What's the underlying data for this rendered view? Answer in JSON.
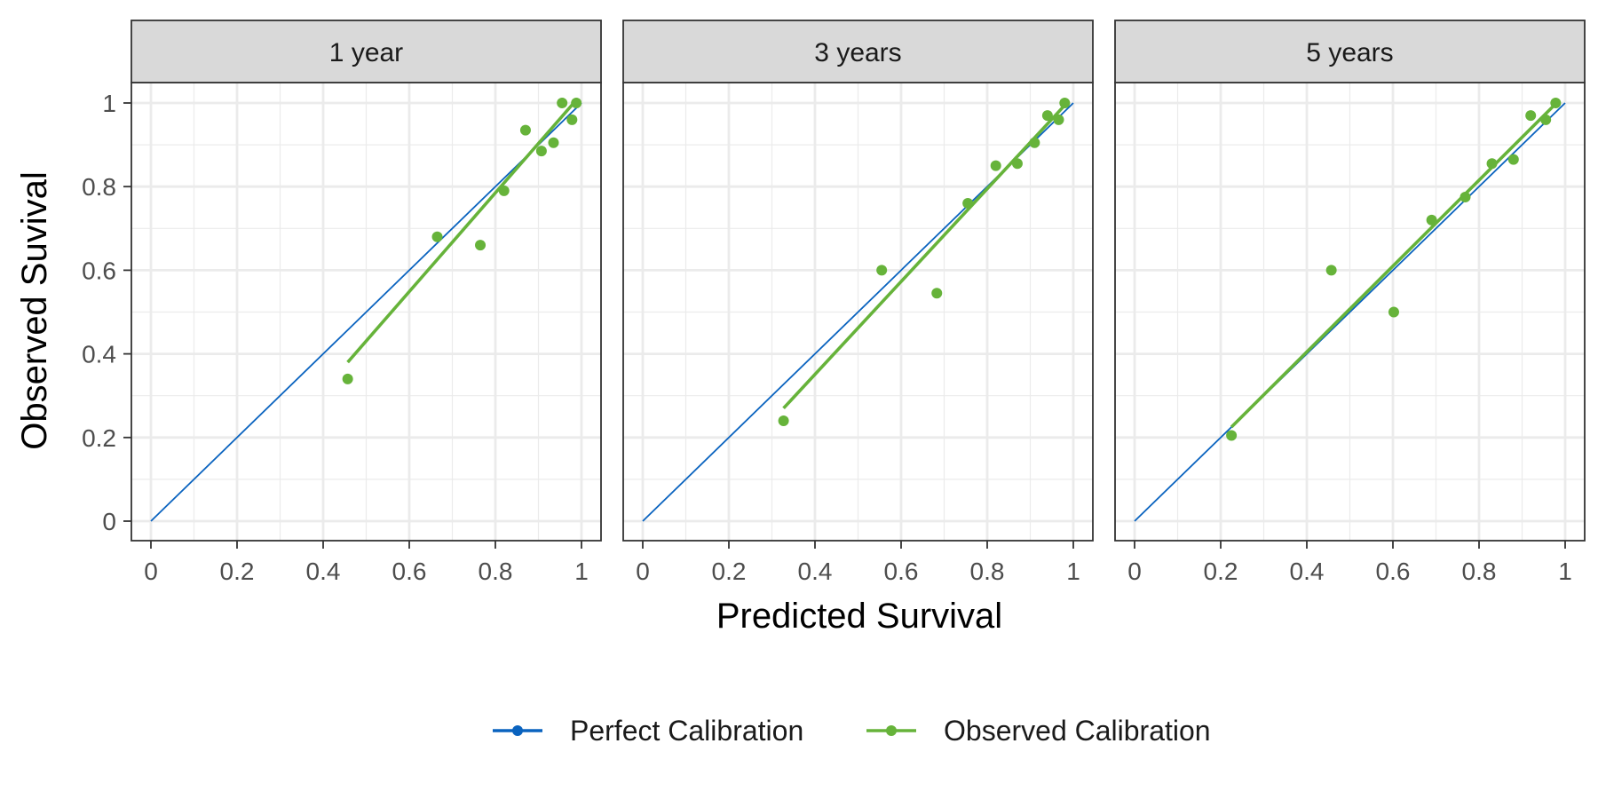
{
  "chart_data": {
    "type": "scatter",
    "xlabel": "Predicted Survival",
    "ylabel": "Observed Suvival",
    "xlim": [
      0,
      1
    ],
    "ylim": [
      0,
      1
    ],
    "x_ticks": [
      "0",
      "0.2",
      "0.4",
      "0.6",
      "0.8",
      "1"
    ],
    "y_ticks": [
      "0",
      "0.2",
      "0.4",
      "0.6",
      "0.8",
      "1"
    ],
    "grid": true,
    "legend_position": "bottom",
    "colors": {
      "perfect": "#0A63BF",
      "observed": "#66B33A",
      "grid": "#EBEBEB",
      "strip_bg": "#D9D9D9",
      "border": "#333333"
    },
    "legend": [
      {
        "key": "perfect",
        "label": "Perfect Calibration"
      },
      {
        "key": "observed",
        "label": "Observed Calibration"
      }
    ],
    "panels": [
      {
        "label": "1 year",
        "perfect_line": {
          "x": [
            0,
            1
          ],
          "y": [
            0,
            1
          ]
        },
        "observed_line": {
          "x": [
            0.457,
            0.982
          ],
          "y": [
            0.38,
            1.0
          ]
        },
        "points": [
          {
            "x": 0.457,
            "y": 0.34
          },
          {
            "x": 0.665,
            "y": 0.68
          },
          {
            "x": 0.765,
            "y": 0.66
          },
          {
            "x": 0.82,
            "y": 0.79
          },
          {
            "x": 0.87,
            "y": 0.935
          },
          {
            "x": 0.907,
            "y": 0.885
          },
          {
            "x": 0.935,
            "y": 0.905
          },
          {
            "x": 0.955,
            "y": 1.0
          },
          {
            "x": 0.978,
            "y": 0.96
          },
          {
            "x": 0.988,
            "y": 1.0
          }
        ]
      },
      {
        "label": "3 years",
        "perfect_line": {
          "x": [
            0,
            1
          ],
          "y": [
            0,
            1
          ]
        },
        "observed_line": {
          "x": [
            0.327,
            0.985
          ],
          "y": [
            0.27,
            1.0
          ]
        },
        "points": [
          {
            "x": 0.327,
            "y": 0.24
          },
          {
            "x": 0.555,
            "y": 0.6
          },
          {
            "x": 0.683,
            "y": 0.545
          },
          {
            "x": 0.755,
            "y": 0.76
          },
          {
            "x": 0.82,
            "y": 0.85
          },
          {
            "x": 0.87,
            "y": 0.855
          },
          {
            "x": 0.91,
            "y": 0.905
          },
          {
            "x": 0.94,
            "y": 0.97
          },
          {
            "x": 0.966,
            "y": 0.96
          },
          {
            "x": 0.98,
            "y": 1.0
          }
        ]
      },
      {
        "label": "5 years",
        "perfect_line": {
          "x": [
            0,
            1
          ],
          "y": [
            0,
            1
          ]
        },
        "observed_line": {
          "x": [
            0.225,
            0.975
          ],
          "y": [
            0.225,
            0.995
          ]
        },
        "points": [
          {
            "x": 0.225,
            "y": 0.205
          },
          {
            "x": 0.457,
            "y": 0.6
          },
          {
            "x": 0.602,
            "y": 0.5
          },
          {
            "x": 0.69,
            "y": 0.72
          },
          {
            "x": 0.768,
            "y": 0.775
          },
          {
            "x": 0.83,
            "y": 0.855
          },
          {
            "x": 0.88,
            "y": 0.865
          },
          {
            "x": 0.92,
            "y": 0.97
          },
          {
            "x": 0.955,
            "y": 0.96
          },
          {
            "x": 0.978,
            "y": 1.0
          }
        ]
      }
    ]
  }
}
